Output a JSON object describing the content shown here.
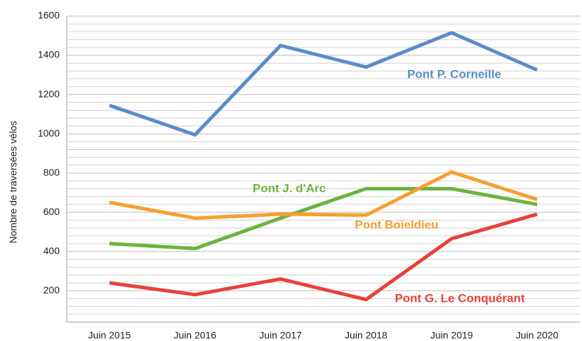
{
  "chart_data": {
    "type": "line",
    "y_label": "Nombre de traversées vélos",
    "categories": [
      "Juin 2015",
      "Juin 2016",
      "Juin 2017",
      "Juin 2018",
      "Juin 2019",
      "Juin 2020"
    ],
    "series": [
      {
        "name": "Pont P. Corneille",
        "color": "#5b8cc9",
        "values": [
          1145,
          995,
          1450,
          1340,
          1515,
          1325
        ]
      },
      {
        "name": "Pont J. d'Arc",
        "color": "#6db33f",
        "values": [
          440,
          415,
          570,
          720,
          720,
          640
        ]
      },
      {
        "name": "Pont Boieldieu",
        "color": "#f5a02f",
        "values": [
          650,
          570,
          590,
          585,
          805,
          665
        ]
      },
      {
        "name": "Pont G. Le Conquérant",
        "color": "#e8413c",
        "values": [
          240,
          180,
          260,
          155,
          465,
          590
        ]
      }
    ],
    "ylim": [
      40,
      1600
    ],
    "yticks": [
      200,
      400,
      600,
      800,
      1000,
      1200,
      1400,
      1600
    ],
    "minor_yticks": [
      80,
      120,
      160,
      240,
      280,
      320,
      360,
      440,
      480,
      520,
      560,
      640,
      680,
      720,
      760,
      840,
      880,
      920,
      960,
      1040,
      1080,
      1120,
      1160,
      1240,
      1280,
      1320,
      1360,
      1440,
      1480,
      1520,
      1560
    ],
    "grid": true
  }
}
